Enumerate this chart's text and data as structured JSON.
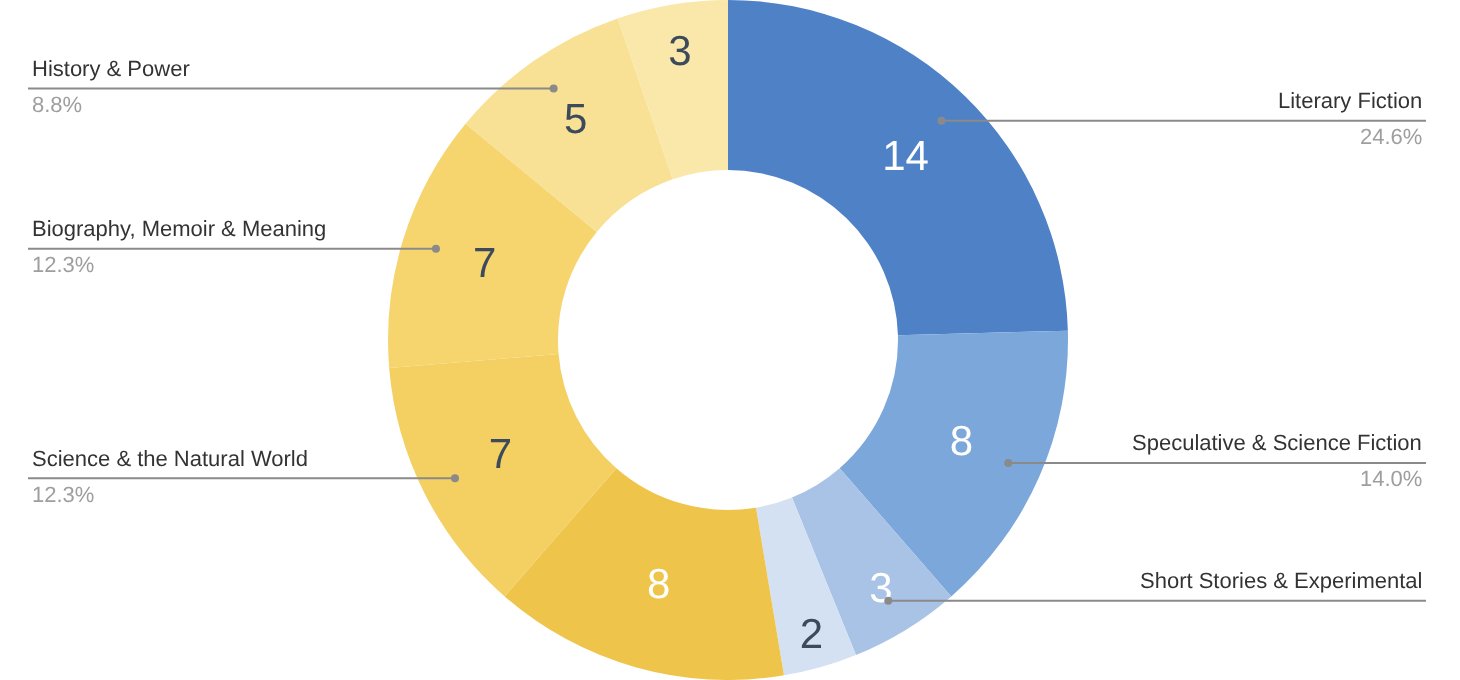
{
  "chart_data": {
    "type": "donut",
    "categories": [
      "Literary Fiction\n24.6%",
      "Speculative & Science Fiction\n14.0%",
      "Short Stories & Experimental",
      null,
      null,
      "Science & the Natural World\n12.3%",
      "Biography, Memoir & Meaning\n12.3%",
      "History & Power\n8.8%",
      null
    ],
    "values": [
      14,
      8,
      3,
      2,
      8,
      7,
      7,
      5,
      3
    ],
    "colors": [
      "#4f81c7",
      "#7ba7da",
      "#a9c3e6",
      "#d4e1f3",
      "#eec54a",
      "#f4cf62",
      "#f6d46e",
      "#f8e094",
      "#fae8aa"
    ],
    "data_labels": true,
    "legend": false
  }
}
